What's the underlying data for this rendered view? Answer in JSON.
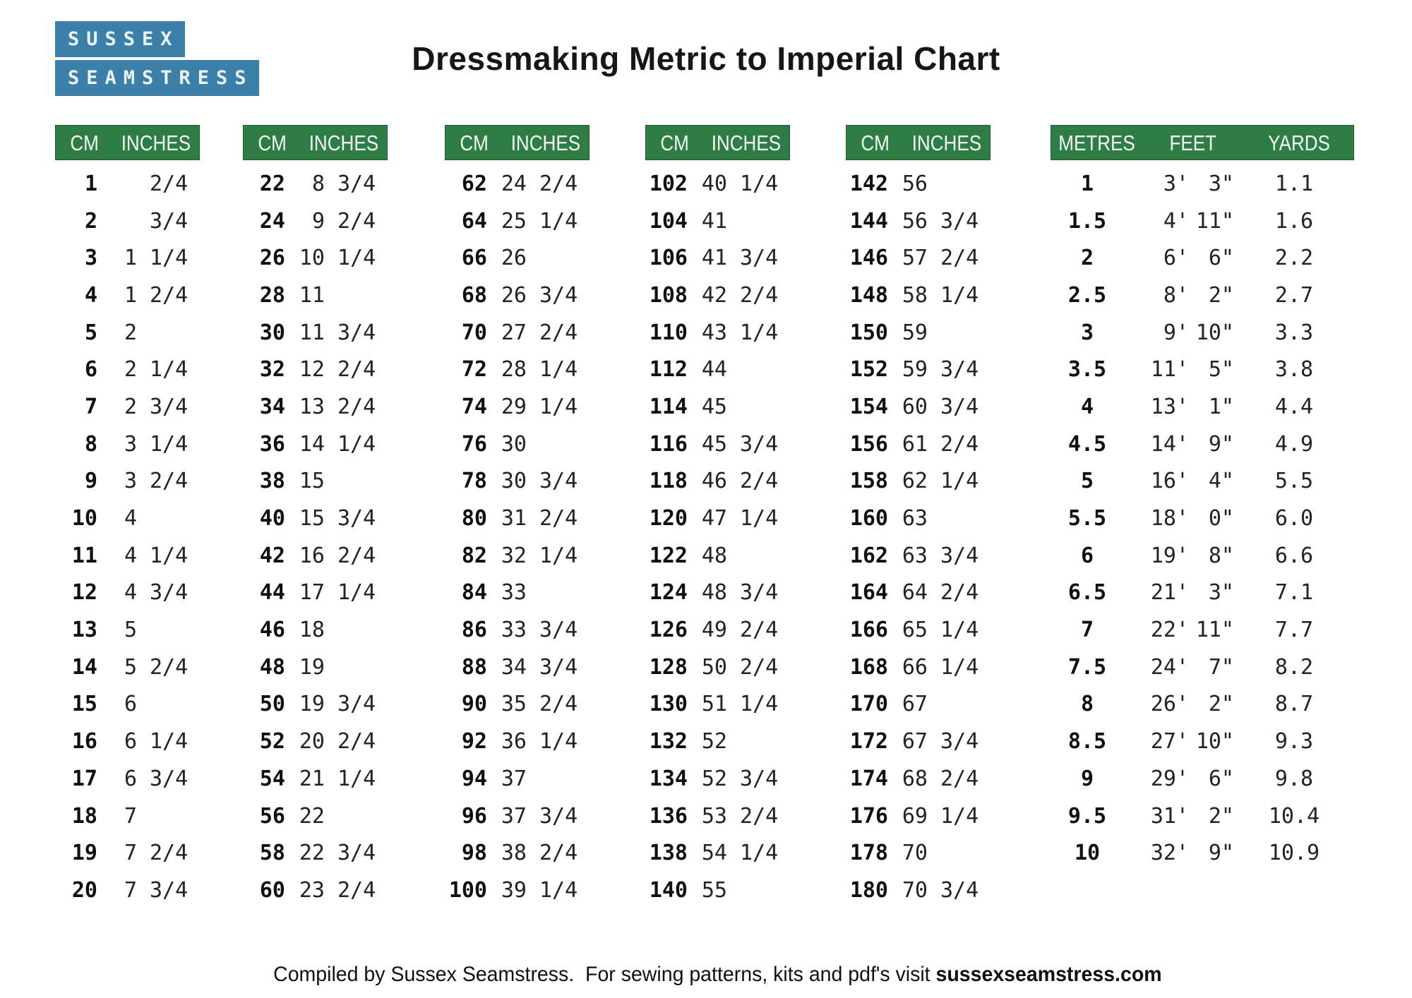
{
  "logo": {
    "line1": "SUSSEX",
    "line2": "SEAMSTRESS"
  },
  "title": "Dressmaking Metric to Imperial Chart",
  "colors": {
    "header_green": "#2e7d44",
    "logo_blue": "#3b80a8",
    "text": "#161616"
  },
  "cm_tables": [
    {
      "headers": [
        "CM",
        "INCHES"
      ],
      "rows": [
        [
          "1",
          "",
          "2/4"
        ],
        [
          "2",
          "",
          "3/4"
        ],
        [
          "3",
          "1",
          "1/4"
        ],
        [
          "4",
          "1",
          "2/4"
        ],
        [
          "5",
          "2",
          ""
        ],
        [
          "6",
          "2",
          "1/4"
        ],
        [
          "7",
          "2",
          "3/4"
        ],
        [
          "8",
          "3",
          "1/4"
        ],
        [
          "9",
          "3",
          "2/4"
        ],
        [
          "10",
          "4",
          ""
        ],
        [
          "11",
          "4",
          "1/4"
        ],
        [
          "12",
          "4",
          "3/4"
        ],
        [
          "13",
          "5",
          ""
        ],
        [
          "14",
          "5",
          "2/4"
        ],
        [
          "15",
          "6",
          ""
        ],
        [
          "16",
          "6",
          "1/4"
        ],
        [
          "17",
          "6",
          "3/4"
        ],
        [
          "18",
          "7",
          ""
        ],
        [
          "19",
          "7",
          "2/4"
        ],
        [
          "20",
          "7",
          "3/4"
        ]
      ]
    },
    {
      "headers": [
        "CM",
        "INCHES"
      ],
      "rows": [
        [
          "22",
          "8",
          "3/4"
        ],
        [
          "24",
          "9",
          "2/4"
        ],
        [
          "26",
          "10",
          "1/4"
        ],
        [
          "28",
          "11",
          ""
        ],
        [
          "30",
          "11",
          "3/4"
        ],
        [
          "32",
          "12",
          "2/4"
        ],
        [
          "34",
          "13",
          "2/4"
        ],
        [
          "36",
          "14",
          "1/4"
        ],
        [
          "38",
          "15",
          ""
        ],
        [
          "40",
          "15",
          "3/4"
        ],
        [
          "42",
          "16",
          "2/4"
        ],
        [
          "44",
          "17",
          "1/4"
        ],
        [
          "46",
          "18",
          ""
        ],
        [
          "48",
          "19",
          ""
        ],
        [
          "50",
          "19",
          "3/4"
        ],
        [
          "52",
          "20",
          "2/4"
        ],
        [
          "54",
          "21",
          "1/4"
        ],
        [
          "56",
          "22",
          ""
        ],
        [
          "58",
          "22",
          "3/4"
        ],
        [
          "60",
          "23",
          "2/4"
        ]
      ]
    },
    {
      "headers": [
        "CM",
        "INCHES"
      ],
      "rows": [
        [
          "62",
          "24",
          "2/4"
        ],
        [
          "64",
          "25",
          "1/4"
        ],
        [
          "66",
          "26",
          ""
        ],
        [
          "68",
          "26",
          "3/4"
        ],
        [
          "70",
          "27",
          "2/4"
        ],
        [
          "72",
          "28",
          "1/4"
        ],
        [
          "74",
          "29",
          "1/4"
        ],
        [
          "76",
          "30",
          ""
        ],
        [
          "78",
          "30",
          "3/4"
        ],
        [
          "80",
          "31",
          "2/4"
        ],
        [
          "82",
          "32",
          "1/4"
        ],
        [
          "84",
          "33",
          ""
        ],
        [
          "86",
          "33",
          "3/4"
        ],
        [
          "88",
          "34",
          "3/4"
        ],
        [
          "90",
          "35",
          "2/4"
        ],
        [
          "92",
          "36",
          "1/4"
        ],
        [
          "94",
          "37",
          ""
        ],
        [
          "96",
          "37",
          "3/4"
        ],
        [
          "98",
          "38",
          "2/4"
        ],
        [
          "100",
          "39",
          "1/4"
        ]
      ]
    },
    {
      "headers": [
        "CM",
        "INCHES"
      ],
      "rows": [
        [
          "102",
          "40",
          "1/4"
        ],
        [
          "104",
          "41",
          ""
        ],
        [
          "106",
          "41",
          "3/4"
        ],
        [
          "108",
          "42",
          "2/4"
        ],
        [
          "110",
          "43",
          "1/4"
        ],
        [
          "112",
          "44",
          ""
        ],
        [
          "114",
          "45",
          ""
        ],
        [
          "116",
          "45",
          "3/4"
        ],
        [
          "118",
          "46",
          "2/4"
        ],
        [
          "120",
          "47",
          "1/4"
        ],
        [
          "122",
          "48",
          ""
        ],
        [
          "124",
          "48",
          "3/4"
        ],
        [
          "126",
          "49",
          "2/4"
        ],
        [
          "128",
          "50",
          "2/4"
        ],
        [
          "130",
          "51",
          "1/4"
        ],
        [
          "132",
          "52",
          ""
        ],
        [
          "134",
          "52",
          "3/4"
        ],
        [
          "136",
          "53",
          "2/4"
        ],
        [
          "138",
          "54",
          "1/4"
        ],
        [
          "140",
          "55",
          ""
        ]
      ]
    },
    {
      "headers": [
        "CM",
        "INCHES"
      ],
      "rows": [
        [
          "142",
          "56",
          ""
        ],
        [
          "144",
          "56",
          "3/4"
        ],
        [
          "146",
          "57",
          "2/4"
        ],
        [
          "148",
          "58",
          "1/4"
        ],
        [
          "150",
          "59",
          ""
        ],
        [
          "152",
          "59",
          "3/4"
        ],
        [
          "154",
          "60",
          "3/4"
        ],
        [
          "156",
          "61",
          "2/4"
        ],
        [
          "158",
          "62",
          "1/4"
        ],
        [
          "160",
          "63",
          ""
        ],
        [
          "162",
          "63",
          "3/4"
        ],
        [
          "164",
          "64",
          "2/4"
        ],
        [
          "166",
          "65",
          "1/4"
        ],
        [
          "168",
          "66",
          "1/4"
        ],
        [
          "170",
          "67",
          ""
        ],
        [
          "172",
          "67",
          "3/4"
        ],
        [
          "174",
          "68",
          "2/4"
        ],
        [
          "176",
          "69",
          "1/4"
        ],
        [
          "178",
          "70",
          ""
        ],
        [
          "180",
          "70",
          "3/4"
        ]
      ]
    }
  ],
  "metres_table": {
    "headers": [
      "METRES",
      "FEET",
      "YARDS"
    ],
    "rows": [
      [
        "1",
        "3'",
        "3\"",
        "1.1"
      ],
      [
        "1.5",
        "4'",
        "11\"",
        "1.6"
      ],
      [
        "2",
        "6'",
        "6\"",
        "2.2"
      ],
      [
        "2.5",
        "8'",
        "2\"",
        "2.7"
      ],
      [
        "3",
        "9'",
        "10\"",
        "3.3"
      ],
      [
        "3.5",
        "11'",
        "5\"",
        "3.8"
      ],
      [
        "4",
        "13'",
        "1\"",
        "4.4"
      ],
      [
        "4.5",
        "14'",
        "9\"",
        "4.9"
      ],
      [
        "5",
        "16'",
        "4\"",
        "5.5"
      ],
      [
        "5.5",
        "18'",
        "0\"",
        "6.0"
      ],
      [
        "6",
        "19'",
        "8\"",
        "6.6"
      ],
      [
        "6.5",
        "21'",
        "3\"",
        "7.1"
      ],
      [
        "7",
        "22'",
        "11\"",
        "7.7"
      ],
      [
        "7.5",
        "24'",
        "7\"",
        "8.2"
      ],
      [
        "8",
        "26'",
        "2\"",
        "8.7"
      ],
      [
        "8.5",
        "27'",
        "10\"",
        "9.3"
      ],
      [
        "9",
        "29'",
        "6\"",
        "9.8"
      ],
      [
        "9.5",
        "31'",
        "2\"",
        "10.4"
      ],
      [
        "10",
        "32'",
        "9\"",
        "10.9"
      ]
    ]
  },
  "footer": {
    "text": "Compiled by Sussex Seamstress.  For sewing patterns, kits and pdf's visit ",
    "website": "sussexseamstress.com"
  }
}
